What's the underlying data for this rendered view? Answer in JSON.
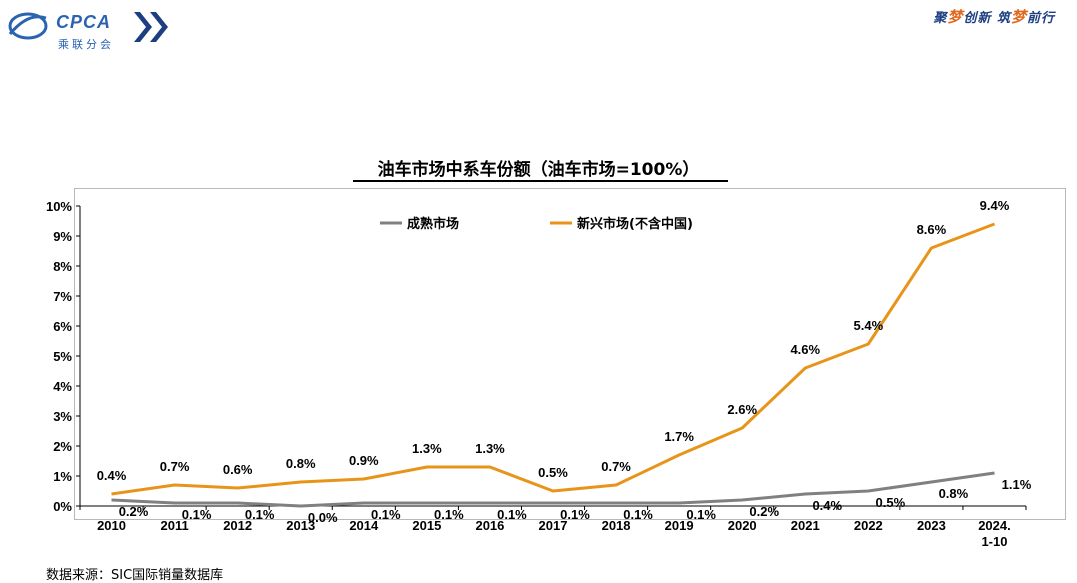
{
  "header": {
    "logo_text": "CPCA",
    "logo_sub": "乘联分会",
    "slogan_parts": [
      "聚",
      "梦",
      "创新 筑",
      "梦",
      "前行"
    ]
  },
  "footnote": "数据来源：SIC国际销量数据库",
  "chart_data": {
    "type": "line",
    "title": "油车市场中系车份额（油车市场=100%）",
    "xlabel": "",
    "ylabel": "",
    "categories": [
      "2010",
      "2011",
      "2012",
      "2013",
      "2014",
      "2015",
      "2016",
      "2017",
      "2018",
      "2019",
      "2020",
      "2021",
      "2022",
      "2023",
      "2024.\n1-10"
    ],
    "ylim": [
      0,
      10
    ],
    "ytick_labels": [
      "0%",
      "1%",
      "2%",
      "3%",
      "4%",
      "5%",
      "6%",
      "7%",
      "8%",
      "9%",
      "10%"
    ],
    "grid": false,
    "legend_position": "top",
    "series": [
      {
        "name": "成熟市场",
        "color": "#808080",
        "values": [
          0.2,
          0.1,
          0.1,
          0.0,
          0.1,
          0.1,
          0.1,
          0.1,
          0.1,
          0.1,
          0.2,
          0.4,
          0.5,
          0.8,
          1.1
        ],
        "labels": [
          "0.2%",
          "0.1%",
          "0.1%",
          "0.0%",
          "0.1%",
          "0.1%",
          "0.1%",
          "0.1%",
          "0.1%",
          "0.1%",
          "0.2%",
          "0.4%",
          "0.5%",
          "0.8%",
          "1.1%"
        ]
      },
      {
        "name": "新兴市场(不含中国)",
        "color": "#e89419",
        "values": [
          0.4,
          0.7,
          0.6,
          0.8,
          0.9,
          1.3,
          1.3,
          0.5,
          0.7,
          1.7,
          2.6,
          4.6,
          5.4,
          8.6,
          9.4
        ],
        "labels": [
          "0.4%",
          "0.7%",
          "0.6%",
          "0.8%",
          "0.9%",
          "1.3%",
          "1.3%",
          "0.5%",
          "0.7%",
          "1.7%",
          "2.6%",
          "4.6%",
          "5.4%",
          "8.6%",
          "9.4%"
        ]
      }
    ]
  }
}
